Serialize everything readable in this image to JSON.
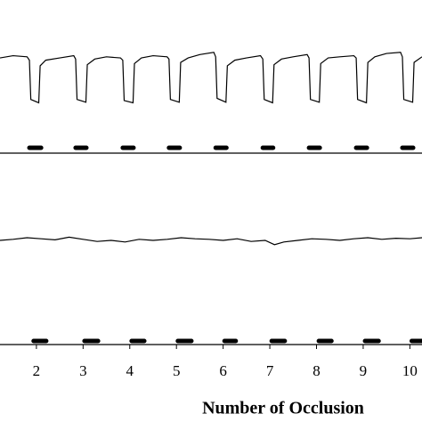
{
  "chart_data": [
    {
      "type": "line",
      "xlim": [
        1.22,
        10.26
      ],
      "ylim": [
        0,
        100
      ],
      "series": [
        {
          "color": "#000000",
          "x": [
            1.22,
            1.5,
            1.8,
            1.85,
            1.88,
            2.05,
            2.08,
            2.2,
            2.5,
            2.8,
            2.84,
            2.87,
            3.06,
            3.09,
            3.25,
            3.5,
            3.8,
            3.85,
            3.88,
            4.07,
            4.1,
            4.25,
            4.5,
            4.8,
            4.84,
            4.87,
            5.06,
            5.09,
            5.25,
            5.5,
            5.8,
            5.84,
            5.87,
            6.06,
            6.09,
            6.25,
            6.5,
            6.8,
            6.85,
            6.88,
            7.06,
            7.09,
            7.25,
            7.5,
            7.8,
            7.84,
            7.87,
            8.06,
            8.09,
            8.25,
            8.5,
            8.8,
            8.85,
            8.88,
            9.07,
            9.1,
            9.25,
            9.5,
            9.8,
            9.84,
            9.87,
            10.06,
            10.09,
            10.26
          ],
          "values": [
            84,
            88,
            86,
            80,
            10,
            4,
            70,
            80,
            84,
            88,
            82,
            10,
            5,
            72,
            82,
            86,
            84,
            80,
            8,
            4,
            74,
            84,
            88,
            86,
            82,
            10,
            5,
            76,
            84,
            90,
            94,
            86,
            12,
            5,
            70,
            80,
            84,
            88,
            82,
            10,
            4,
            72,
            82,
            86,
            90,
            84,
            10,
            5,
            74,
            84,
            86,
            88,
            84,
            10,
            4,
            76,
            86,
            92,
            94,
            86,
            10,
            5,
            76,
            86
          ]
        }
      ],
      "occlusions": [
        [
          1.85,
          2.1
        ],
        [
          2.84,
          3.07
        ],
        [
          3.85,
          4.08
        ],
        [
          4.84,
          5.07
        ],
        [
          5.84,
          6.07
        ],
        [
          6.85,
          7.07
        ],
        [
          7.84,
          8.07
        ],
        [
          8.85,
          9.08
        ],
        [
          9.84,
          10.07
        ]
      ]
    },
    {
      "type": "line",
      "xlim": [
        1.22,
        10.26
      ],
      "ylim": [
        0,
        100
      ],
      "series": [
        {
          "color": "#000000",
          "x": [
            1.22,
            1.5,
            1.8,
            2.1,
            2.4,
            2.7,
            3.0,
            3.3,
            3.6,
            3.9,
            4.2,
            4.5,
            4.8,
            5.1,
            5.4,
            5.7,
            6.0,
            6.3,
            6.6,
            6.9,
            7.1,
            7.3,
            7.6,
            7.9,
            8.2,
            8.5,
            8.8,
            9.1,
            9.4,
            9.7,
            10.0,
            10.26
          ],
          "values": [
            50,
            52,
            55,
            53,
            51,
            56,
            52,
            48,
            50,
            47,
            52,
            50,
            52,
            55,
            53,
            52,
            50,
            53,
            48,
            50,
            42,
            47,
            50,
            53,
            52,
            50,
            53,
            55,
            52,
            54,
            53,
            55
          ]
        }
      ],
      "occlusions": [
        [
          1.94,
          2.21
        ],
        [
          3.03,
          3.32
        ],
        [
          4.04,
          4.31
        ],
        [
          5.03,
          5.32
        ],
        [
          6.03,
          6.27
        ],
        [
          7.04,
          7.32
        ],
        [
          8.05,
          8.32
        ],
        [
          9.04,
          9.33
        ],
        [
          10.04,
          10.26
        ]
      ],
      "xticks": [
        2,
        3,
        4,
        5,
        6,
        7,
        8,
        9,
        10
      ],
      "xlabel": "Number of Occlusion"
    }
  ]
}
